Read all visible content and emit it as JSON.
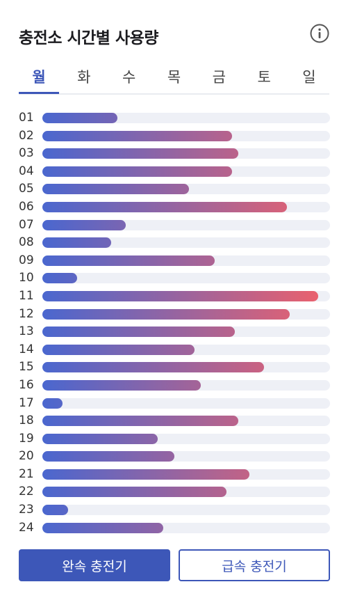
{
  "header": {
    "title": "충전소 시간별 사용량",
    "info_icon": "info-circle-icon"
  },
  "tabs": [
    {
      "label": "월",
      "active": true
    },
    {
      "label": "화",
      "active": false
    },
    {
      "label": "수",
      "active": false
    },
    {
      "label": "목",
      "active": false
    },
    {
      "label": "금",
      "active": false
    },
    {
      "label": "토",
      "active": false
    },
    {
      "label": "일",
      "active": false
    }
  ],
  "colors": {
    "accent": "#3d57b8",
    "bar_start": "#4a67cf",
    "bar_end": "#f0616a",
    "track": "#eef0f6"
  },
  "chart_data": {
    "type": "bar",
    "orientation": "horizontal",
    "categories": [
      "01",
      "02",
      "03",
      "04",
      "05",
      "06",
      "07",
      "08",
      "09",
      "10",
      "11",
      "12",
      "13",
      "14",
      "15",
      "16",
      "17",
      "18",
      "19",
      "20",
      "21",
      "22",
      "23",
      "24"
    ],
    "values": [
      26,
      66,
      68,
      66,
      51,
      85,
      29,
      24,
      60,
      12,
      96,
      86,
      67,
      53,
      77,
      55,
      7,
      68,
      40,
      46,
      72,
      64,
      9,
      42
    ],
    "ylim": [
      0,
      100
    ]
  },
  "buttons": {
    "slow": "완속 충전기",
    "fast": "급속 충전기"
  }
}
